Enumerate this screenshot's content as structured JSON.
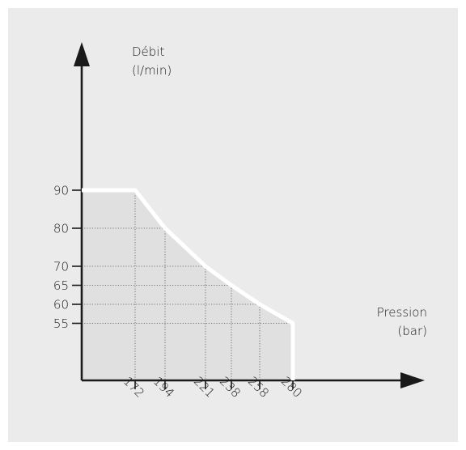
{
  "chart_data": {
    "type": "line",
    "ylabel": [
      "Débit",
      "(l/min)"
    ],
    "xlabel": [
      "Pression",
      "(bar)"
    ],
    "x": [
      0,
      172,
      194,
      221,
      238,
      258,
      280,
      280
    ],
    "y": [
      90,
      90,
      80,
      70,
      65,
      60,
      55,
      0
    ],
    "x_ticks": [
      172,
      194,
      221,
      238,
      258,
      280
    ],
    "y_ticks": [
      90,
      80,
      70,
      65,
      60,
      55
    ],
    "points": [
      {
        "x": 172,
        "y": 90
      },
      {
        "x": 194,
        "y": 80
      },
      {
        "x": 221,
        "y": 70
      },
      {
        "x": 238,
        "y": 65
      },
      {
        "x": 258,
        "y": 60
      },
      {
        "x": 280,
        "y": 55
      }
    ],
    "grid": "dotted guide lines at data points",
    "colors": {
      "curve": "#ffffff",
      "axis": "#1a1a1a",
      "background": "#ebebeb",
      "fill": "#e0e0e0",
      "guide": "#555555"
    }
  }
}
